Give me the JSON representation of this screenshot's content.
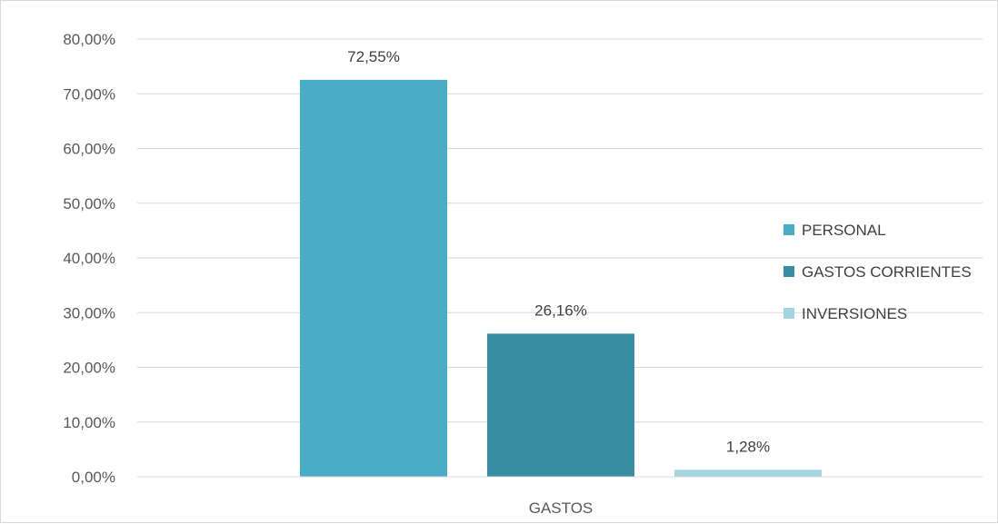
{
  "chart_data": {
    "type": "bar",
    "title": "",
    "xlabel": "",
    "ylabel": "",
    "categories": [
      "GASTOS"
    ],
    "series": [
      {
        "name": "PERSONAL",
        "values": [
          72.55
        ],
        "label": "72,55%",
        "color": "#4bacc6"
      },
      {
        "name": "GASTOS CORRIENTES",
        "values": [
          26.16
        ],
        "label": "26,16%",
        "color": "#3a8ca3"
      },
      {
        "name": "INVERSIONES",
        "values": [
          1.28
        ],
        "label": "1,28%",
        "color": "#a5d3e0"
      }
    ],
    "ylim": [
      0,
      80
    ],
    "yticks": [
      0,
      10,
      20,
      30,
      40,
      50,
      60,
      70,
      80
    ],
    "ytick_labels": [
      "0,00%",
      "10,00%",
      "20,00%",
      "30,00%",
      "40,00%",
      "50,00%",
      "60,00%",
      "70,00%",
      "80,00%"
    ],
    "grid": true,
    "legend": "right"
  }
}
